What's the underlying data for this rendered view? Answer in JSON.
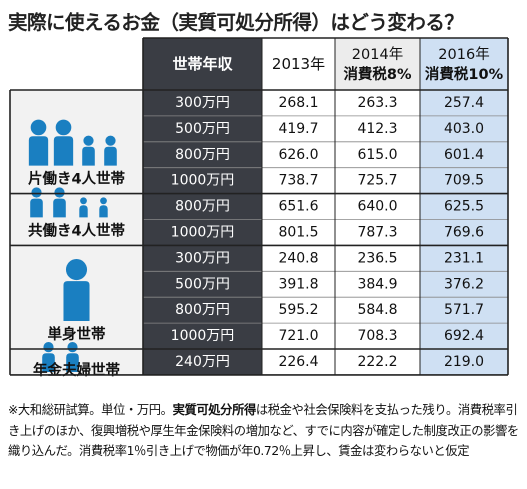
{
  "title": "実際に使えるお金（実質可処分所得）はどう変わる？",
  "note": {
    "lead": "※大和総研試算。単位・万円。",
    "term": "実質可処分所得",
    "rest": "は税金や社会保険料を支払った残り。消費税率引き上げのほか、復興増税や厚生年金保険料の増加など、すでに内容が確定した制度改正の影響を織り込んだ。消費税率1％引き上げで物価が年0.72％上昇し、賃金は変わらないと仮定"
  },
  "colors": {
    "header_dark": "#3a3d44",
    "highlight_col": "#cfe0f3",
    "row_bg": "#ffffff",
    "group_bg": "#f2f2f2",
    "icon_blue": "#1a7fc1",
    "border": "#222222"
  },
  "chart_data": {
    "type": "table",
    "title": "実際に使えるお金（実質可処分所得）はどう変わる？",
    "columns": {
      "income": "世帯年収",
      "y2013": "2013年",
      "y2014_line1": "2014年",
      "y2014_line2": "消費税8%",
      "y2016_line1": "2016年",
      "y2016_line2": "消費税10%"
    },
    "groups": [
      {
        "name": "片働き4人世帯",
        "icon": "family-of-four-icon",
        "rows": [
          {
            "income": "300万円",
            "y2013": 268.1,
            "y2014": 263.3,
            "y2016": 257.4
          },
          {
            "income": "500万円",
            "y2013": 419.7,
            "y2014": 412.3,
            "y2016": 403.0
          },
          {
            "income": "800万円",
            "y2013": 626.0,
            "y2014": 615.0,
            "y2016": 601.4
          },
          {
            "income": "1000万円",
            "y2013": 738.7,
            "y2014": 725.7,
            "y2016": 709.5
          }
        ]
      },
      {
        "name": "共働き4人世帯",
        "icon": "dual-income-family-icon",
        "rows": [
          {
            "income": "800万円",
            "y2013": 651.6,
            "y2014": 640.0,
            "y2016": 625.5
          },
          {
            "income": "1000万円",
            "y2013": 801.5,
            "y2014": 787.3,
            "y2016": 769.6
          }
        ]
      },
      {
        "name": "単身世帯",
        "icon": "single-person-icon",
        "rows": [
          {
            "income": "300万円",
            "y2013": 240.8,
            "y2014": 236.5,
            "y2016": 231.1
          },
          {
            "income": "500万円",
            "y2013": 391.8,
            "y2014": 384.9,
            "y2016": 376.2
          },
          {
            "income": "800万円",
            "y2013": 595.2,
            "y2014": 584.8,
            "y2016": 571.7
          },
          {
            "income": "1000万円",
            "y2013": 721.0,
            "y2014": 708.3,
            "y2016": 692.4
          }
        ]
      },
      {
        "name": "年金夫婦世帯",
        "icon": "pensioner-couple-icon",
        "rows": [
          {
            "income": "240万円",
            "y2013": 226.4,
            "y2014": 222.2,
            "y2016": 219.0
          }
        ]
      }
    ]
  }
}
